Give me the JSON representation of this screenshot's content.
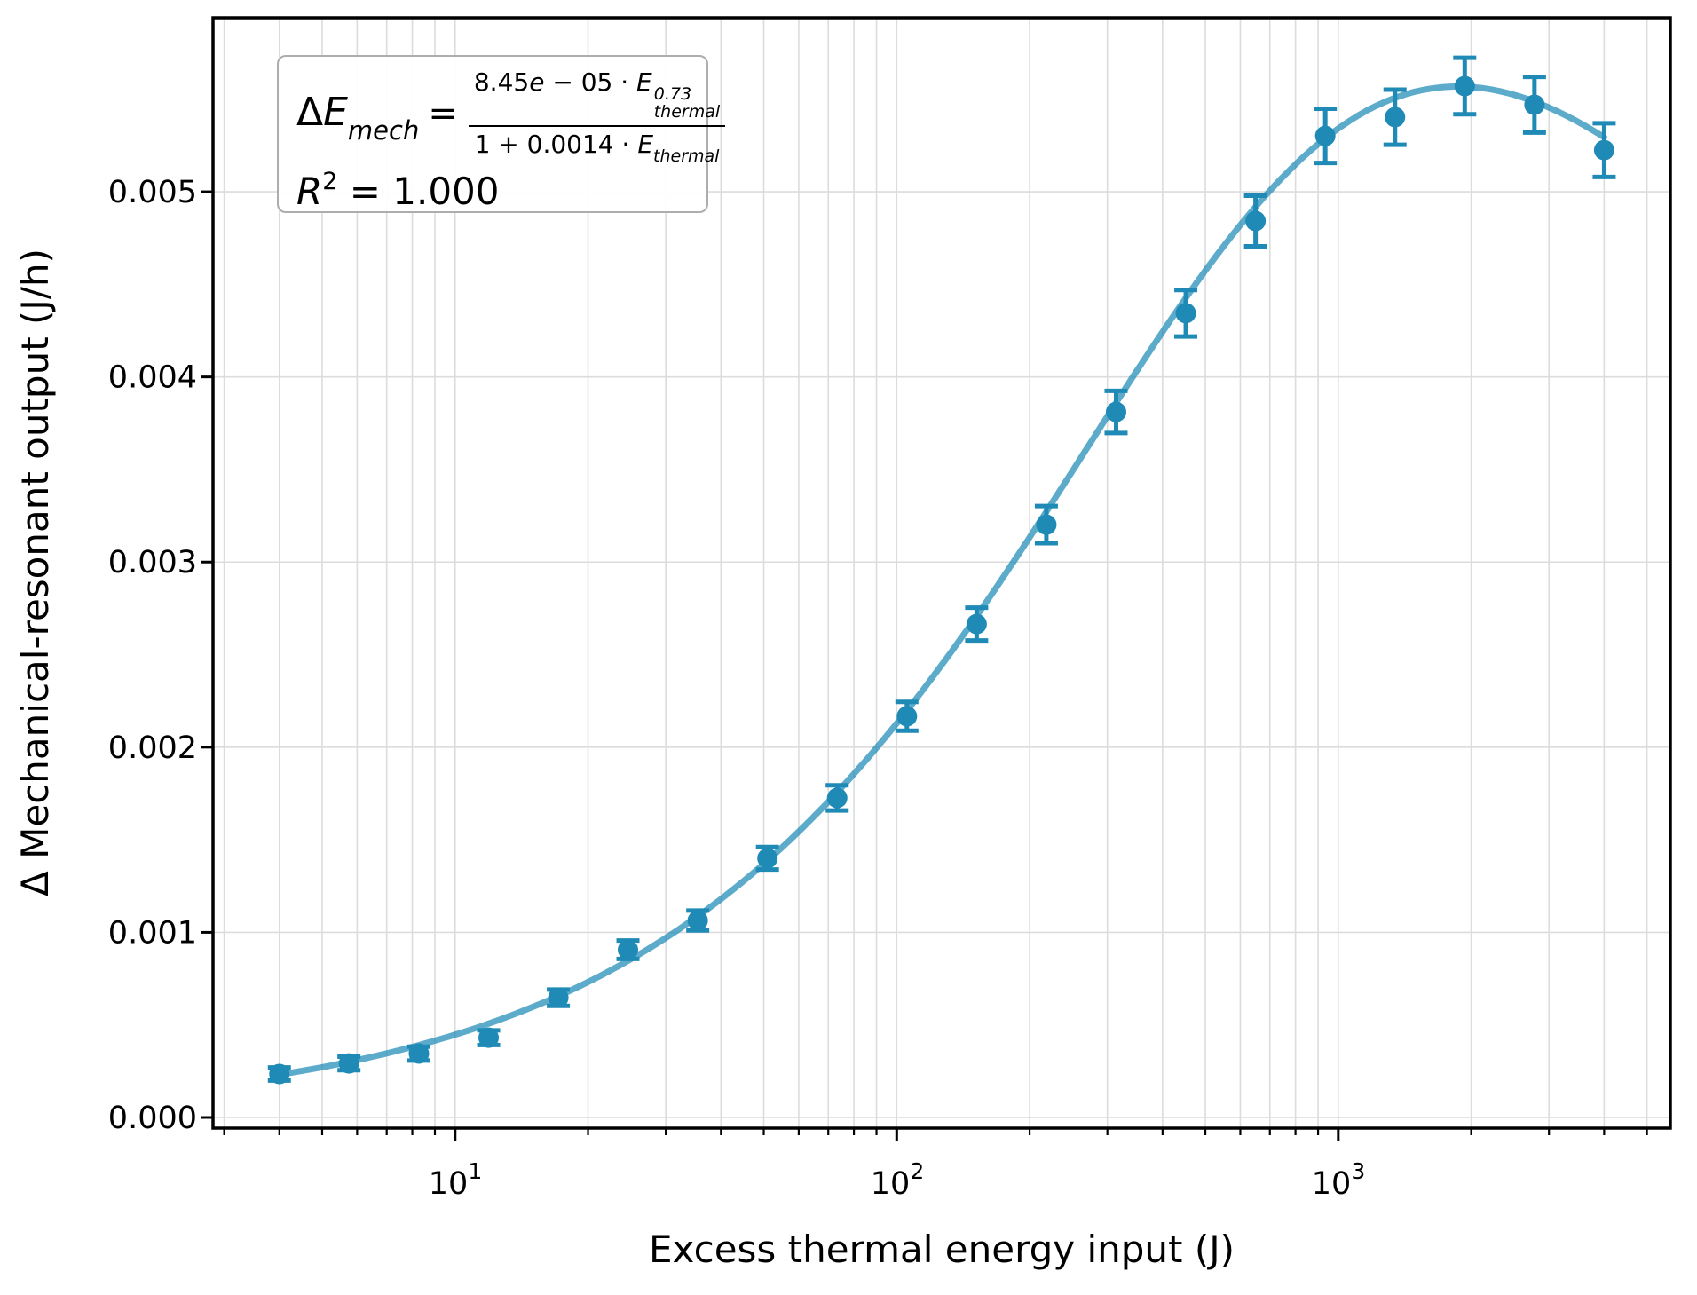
{
  "figure": {
    "background": "#ffffff"
  },
  "annotation": {
    "delta": "Δ",
    "lhs_var": "E",
    "lhs_sub": "mech",
    "equals": "=",
    "num_coeff": "8.45",
    "num_e": "e",
    "num_tail": " − 05 · ",
    "num_var": "E",
    "num_sup": "0.73",
    "num_sub": "thermal",
    "den_text": "1 + 0.0014 · ",
    "den_var": "E",
    "den_sub": "thermal",
    "r2_var": "R",
    "r2_sup": "2",
    "r2_tail": " = 1.000"
  },
  "chart_data": {
    "type": "scatter",
    "title": "",
    "xlabel": "Excess thermal energy input (J)",
    "ylabel": "Δ Mechanical-resonant output (J/h)",
    "xscale": "log",
    "yscale": "linear",
    "grid": "both",
    "legend": null,
    "xlim": [
      2.83,
      5650
    ],
    "ylim": [
      -5.75e-05,
      0.00594
    ],
    "x": [
      4.0,
      5.75,
      8.28,
      11.91,
      17.13,
      24.63,
      35.44,
      50.97,
      73.32,
      105.47,
      151.72,
      218.24,
      313.93,
      451.58,
      649.6,
      934.44,
      1344.17,
      1933.58,
      2781.41,
      4001.0
    ],
    "y": [
      0.000235,
      0.000292,
      0.000345,
      0.000431,
      0.000647,
      0.000906,
      0.001064,
      0.0014,
      0.001726,
      0.002167,
      0.002665,
      0.003202,
      0.003811,
      0.004344,
      0.004842,
      0.005302,
      0.005403,
      0.005571,
      0.00547,
      0.005225
    ],
    "yerr": [
      3.52e-05,
      3.64e-05,
      3.76e-05,
      3.95e-05,
      4.42e-05,
      4.99e-05,
      5.34e-05,
      6.08e-05,
      6.8e-05,
      7.77e-05,
      8.86e-05,
      0.0001004,
      0.0001138,
      0.0001256,
      0.0001365,
      0.0001466,
      0.0001489,
      0.0001526,
      0.0001503,
      0.000145
    ],
    "fit_curve": {
      "equation_display": "ΔE_mech = (8.45e−05 · E_thermal^0.73) / (1 + 0.0014 · E_thermal)",
      "r_squared": "1.000",
      "a": 8.45e-05,
      "p": 0.73,
      "b": 0.00145,
      "x_domain": [
        4.0,
        4001.0
      ]
    },
    "xticks": [
      {
        "base": "10",
        "exp": "1",
        "value": 10
      },
      {
        "base": "10",
        "exp": "2",
        "value": 100
      },
      {
        "base": "10",
        "exp": "3",
        "value": 1000
      }
    ],
    "xtick_values": [
      10,
      100,
      1000
    ],
    "ytick_labels": [
      "0.000",
      "0.001",
      "0.002",
      "0.003",
      "0.004",
      "0.005"
    ],
    "ytick_values": [
      0,
      0.001,
      0.002,
      0.003,
      0.004,
      0.005
    ],
    "colors": {
      "marker": "#1f8ab5",
      "line": "rgba(31,138,181,0.72)",
      "grid": "#dcdcdc",
      "frame": "#000000",
      "annotation_border": "#adadad"
    }
  }
}
